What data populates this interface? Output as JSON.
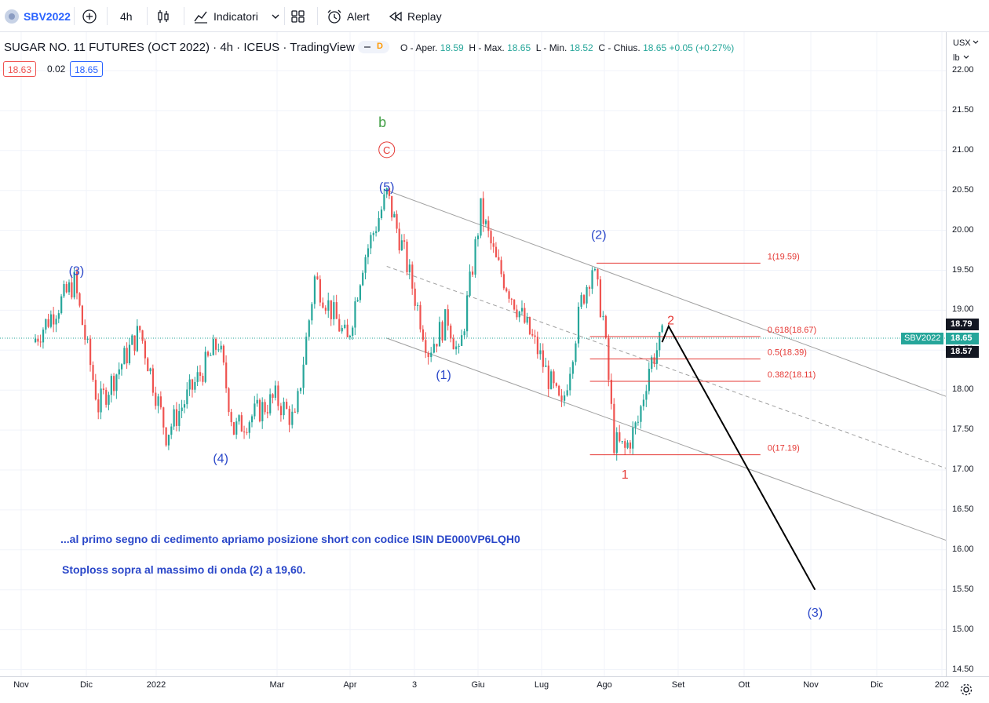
{
  "toolbar": {
    "symbol": "SBV2022",
    "interval": "4h",
    "indicators_label": "Indicatori",
    "alert_label": "Alert",
    "replay_label": "Replay"
  },
  "legend": {
    "title": "SUGAR NO. 11 FUTURES (OCT 2022) · 4h · ICEUS · TradingView",
    "badge": "D",
    "o_label": "O - Aper.",
    "o": "18.59",
    "h_label": "H - Max.",
    "h": "18.65",
    "l_label": "L - Min.",
    "l": "18.52",
    "c_label": "C - Chius.",
    "c": "18.65",
    "change": "+0.05 (+0.27%)",
    "bid": "18.63",
    "spread": "0.02",
    "ask": "18.65"
  },
  "price_axis": {
    "currency": "USX",
    "unit": "lb",
    "ticks": [
      "22.00",
      "21.50",
      "21.00",
      "20.50",
      "20.00",
      "19.50",
      "19.00",
      "18.50",
      "18.00",
      "17.50",
      "17.00",
      "16.50",
      "16.00",
      "15.50",
      "15.00",
      "14.50"
    ],
    "tag_high": "18.79",
    "tag_symbol": "SBV2022",
    "tag_last": "18.65",
    "tag_low": "18.57"
  },
  "time_axis": [
    "Nov",
    "Dic",
    "2022",
    "Mar",
    "Apr",
    "3",
    "Giu",
    "Lug",
    "Ago",
    "Set",
    "Ott",
    "Nov",
    "Dic",
    "202"
  ],
  "colors": {
    "up": "#26a69a",
    "down": "#ef5350",
    "blue_label": "#2a47c9",
    "red_label": "#e53935",
    "green_label": "#43a047",
    "fib": "#e53935",
    "channel": "#9e9e9e"
  },
  "chart_data": {
    "type": "line",
    "title": "SUGAR NO. 11 FUTURES (OCT 2022)",
    "xlabel": "",
    "ylabel": "",
    "ylim": [
      14.5,
      22.0
    ],
    "x": [
      "2021-11",
      "2021-11-20",
      "2021-12",
      "2021-12-20",
      "2022-01",
      "2022-01-25",
      "2022-02",
      "2022-02-20",
      "2022-03",
      "2022-03-10",
      "2022-03-25",
      "2022-04",
      "2022-04-12",
      "2022-04-20",
      "2022-05",
      "2022-05-10",
      "2022-05-15",
      "2022-05-25",
      "2022-06",
      "2022-06-20",
      "2022-06-25",
      "2022-07",
      "2022-07-10",
      "2022-07-15",
      "2022-07-20",
      "2022-07-25",
      "2022-07-30",
      "2022-08-05",
      "2022-08-10",
      "2022-08-16"
    ],
    "series": [
      {
        "values": [
          18.6,
          19.35,
          17.8,
          18.75,
          17.45,
          18.6,
          17.5,
          17.9,
          17.6,
          19.4,
          18.6,
          19.6,
          20.45,
          19.7,
          18.5,
          18.9,
          18.4,
          20.25,
          19.6,
          18.5,
          18.15,
          17.75,
          19.1,
          19.55,
          18.9,
          17.35,
          17.25,
          17.6,
          18.3,
          18.65
        ]
      }
    ],
    "wave_labels": [
      "(3)",
      "(4)",
      "(5)",
      "C",
      "b",
      "(1)",
      "(2)",
      "1",
      "2",
      "(3)"
    ],
    "fibonacci": [
      {
        "label": "1(19.59)",
        "value": 19.59
      },
      {
        "label": "0.618(18.67)",
        "value": 18.67
      },
      {
        "label": "0.5(18.39)",
        "value": 18.39
      },
      {
        "label": "0.382(18.11)",
        "value": 18.11
      },
      {
        "label": "0(17.19)",
        "value": 17.19
      }
    ],
    "projection": [
      {
        "x": "2022-08-16",
        "y": 18.6
      },
      {
        "x": "2022-08-19",
        "y": 18.8
      },
      {
        "x": "2022-10-25",
        "y": 15.5
      }
    ],
    "channel": {
      "upper": [
        {
          "x": "2022-04-12",
          "y": 20.5
        },
        {
          "x": "2022-12-31",
          "y": 17.85
        }
      ],
      "middle": [
        {
          "x": "2022-04-12",
          "y": 19.55
        },
        {
          "x": "2022-12-31",
          "y": 16.95
        }
      ],
      "lower": [
        {
          "x": "2022-04-12",
          "y": 18.65
        },
        {
          "x": "2022-12-31",
          "y": 16.05
        }
      ]
    }
  },
  "notes": {
    "line1": "...al primo segno di cedimento apriamo posizione short  con codice ISIN DE000VP6LQH0",
    "line2": "Stoploss sopra al massimo di onda (2) a 19,60."
  }
}
